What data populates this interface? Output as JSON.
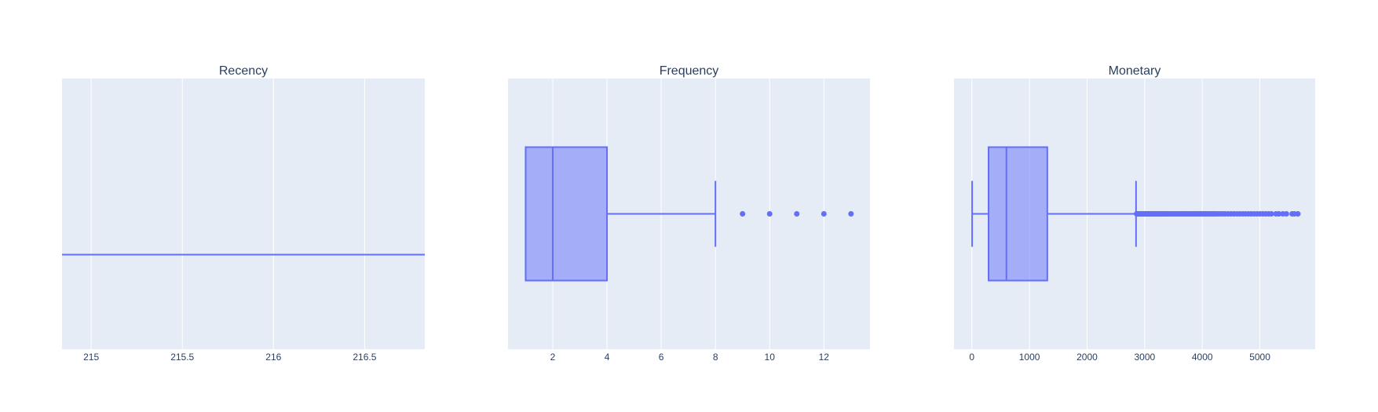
{
  "colors": {
    "plot_bg": "#E5ECF6",
    "grid": "#ffffff",
    "box_line": "#636EFA",
    "box_fill": "rgba(99,110,250,0.5)",
    "text": "#2a3f5f"
  },
  "chart_data": [
    {
      "type": "box",
      "orientation": "horizontal",
      "title": "Recency",
      "xlim": [
        214.84,
        216.83
      ],
      "xticks": [
        215,
        215.5,
        216,
        216.5
      ],
      "xtick_labels": [
        "215",
        "215.5",
        "216",
        "216.5"
      ],
      "grid": true,
      "box": {
        "min": 216,
        "q1": 216,
        "median": 216,
        "q3": 216,
        "max": 216
      },
      "outliers": []
    },
    {
      "type": "box",
      "orientation": "horizontal",
      "title": "Frequency",
      "xlim": [
        0.35,
        13.7
      ],
      "xticks": [
        2,
        4,
        6,
        8,
        10,
        12
      ],
      "xtick_labels": [
        "2",
        "4",
        "6",
        "8",
        "10",
        "12"
      ],
      "grid": true,
      "box": {
        "min": 1,
        "q1": 1,
        "median": 2,
        "q3": 4,
        "max": 8
      },
      "outliers": [
        9,
        10,
        11,
        12,
        13
      ]
    },
    {
      "type": "box",
      "orientation": "horizontal",
      "title": "Monetary",
      "xlim": [
        -310,
        5960
      ],
      "xticks": [
        0,
        1000,
        2000,
        3000,
        4000,
        5000
      ],
      "xtick_labels": [
        "0",
        "1000",
        "2000",
        "3000",
        "4000",
        "5000"
      ],
      "grid": true,
      "box": {
        "min": 5,
        "q1": 290,
        "median": 600,
        "q3": 1310,
        "max": 2850
      },
      "outliers": [
        2860,
        2880,
        2900,
        2920,
        2940,
        2960,
        2980,
        3000,
        3020,
        3040,
        3060,
        3080,
        3100,
        3120,
        3140,
        3160,
        3180,
        3200,
        3220,
        3240,
        3260,
        3280,
        3300,
        3320,
        3340,
        3360,
        3380,
        3400,
        3430,
        3460,
        3490,
        3520,
        3550,
        3580,
        3610,
        3640,
        3670,
        3700,
        3730,
        3760,
        3790,
        3820,
        3850,
        3880,
        3910,
        3940,
        3970,
        4000,
        4030,
        4060,
        4090,
        4120,
        4150,
        4180,
        4210,
        4240,
        4280,
        4320,
        4360,
        4400,
        4450,
        4500,
        4550,
        4600,
        4650,
        4700,
        4750,
        4800,
        4850,
        4900,
        4950,
        5000,
        5050,
        5100,
        5150,
        5200,
        5280,
        5330,
        5400,
        5460,
        5560,
        5600,
        5660
      ]
    }
  ]
}
